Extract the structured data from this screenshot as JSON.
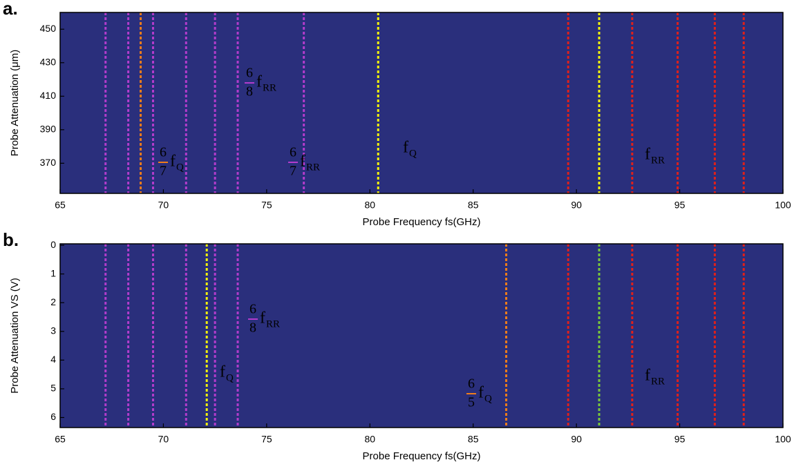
{
  "chart_data": [
    {
      "type": "heatmap",
      "panel_label": "a.",
      "xlabel": "Probe Frequency fs(GHz)",
      "ylabel": "Probe Attenuation (μm)",
      "xlim": [
        65,
        100
      ],
      "xticks": [
        65,
        70,
        75,
        80,
        85,
        90,
        95,
        100
      ],
      "ylim": [
        352,
        460
      ],
      "yticks": [
        370,
        390,
        410,
        430,
        450
      ],
      "y_inverted": false,
      "background": "#2a2f7c",
      "vlines": [
        {
          "x": 67.2,
          "color": "#b33ccc"
        },
        {
          "x": 68.3,
          "color": "#b33ccc"
        },
        {
          "x": 68.9,
          "color": "#f07d1a"
        },
        {
          "x": 69.5,
          "color": "#b33ccc"
        },
        {
          "x": 71.1,
          "color": "#b33ccc"
        },
        {
          "x": 72.5,
          "color": "#b33ccc"
        },
        {
          "x": 73.6,
          "color": "#b33ccc"
        },
        {
          "x": 76.8,
          "color": "#b33ccc"
        },
        {
          "x": 80.4,
          "color": "#f5f50a"
        },
        {
          "x": 89.6,
          "color": "#e0201a"
        },
        {
          "x": 91.1,
          "color": "#f5f50a"
        },
        {
          "x": 92.7,
          "color": "#e0201a"
        },
        {
          "x": 94.9,
          "color": "#e0201a"
        },
        {
          "x": 96.7,
          "color": "#e0201a"
        },
        {
          "x": 98.1,
          "color": "#e0201a"
        }
      ],
      "annotations": [
        {
          "numerator": "6",
          "denominator": "7",
          "text": "f",
          "subscript": "Q",
          "color": "#f07d1a"
        },
        {
          "numerator": "6",
          "denominator": "8",
          "text": "f",
          "subscript": "RR",
          "color": "#b33ccc"
        },
        {
          "numerator": "6",
          "denominator": "7",
          "text": "f",
          "subscript": "RR",
          "color": "#b33ccc"
        },
        {
          "text": "f",
          "subscript": "Q",
          "color": "#f5f50a"
        },
        {
          "text": "f",
          "subscript": "RR",
          "color": "#e0201a"
        }
      ]
    },
    {
      "type": "heatmap",
      "panel_label": "b.",
      "xlabel": "Probe Frequency fs(GHz)",
      "ylabel": "Probe Attenuation VS (V)",
      "xlim": [
        65,
        100
      ],
      "xticks": [
        65,
        70,
        75,
        80,
        85,
        90,
        95,
        100
      ],
      "ylim": [
        -0.05,
        6.35
      ],
      "yticks": [
        0,
        1,
        2,
        3,
        4,
        5,
        6
      ],
      "y_inverted": true,
      "background": "#2a2f7c",
      "vlines": [
        {
          "x": 67.2,
          "color": "#b33ccc"
        },
        {
          "x": 68.3,
          "color": "#b33ccc"
        },
        {
          "x": 69.5,
          "color": "#b33ccc"
        },
        {
          "x": 71.1,
          "color": "#b33ccc"
        },
        {
          "x": 72.1,
          "color": "#f5f50a"
        },
        {
          "x": 72.5,
          "color": "#b33ccc"
        },
        {
          "x": 73.6,
          "color": "#b33ccc"
        },
        {
          "x": 86.6,
          "color": "#f07d1a"
        },
        {
          "x": 89.6,
          "color": "#e0201a"
        },
        {
          "x": 91.1,
          "color": "#7ac93a"
        },
        {
          "x": 92.7,
          "color": "#e0201a"
        },
        {
          "x": 94.9,
          "color": "#e0201a"
        },
        {
          "x": 96.7,
          "color": "#e0201a"
        },
        {
          "x": 98.1,
          "color": "#e0201a"
        }
      ],
      "annotations": [
        {
          "numerator": "6",
          "denominator": "8",
          "text": "f",
          "subscript": "RR",
          "color": "#b33ccc"
        },
        {
          "text": "f",
          "subscript": "Q",
          "color": "#f5f50a"
        },
        {
          "numerator": "6",
          "denominator": "5",
          "text": "f",
          "subscript": "Q",
          "color": "#f07d1a"
        },
        {
          "text": "f",
          "subscript": "RR",
          "color": "#e0201a"
        }
      ]
    }
  ]
}
